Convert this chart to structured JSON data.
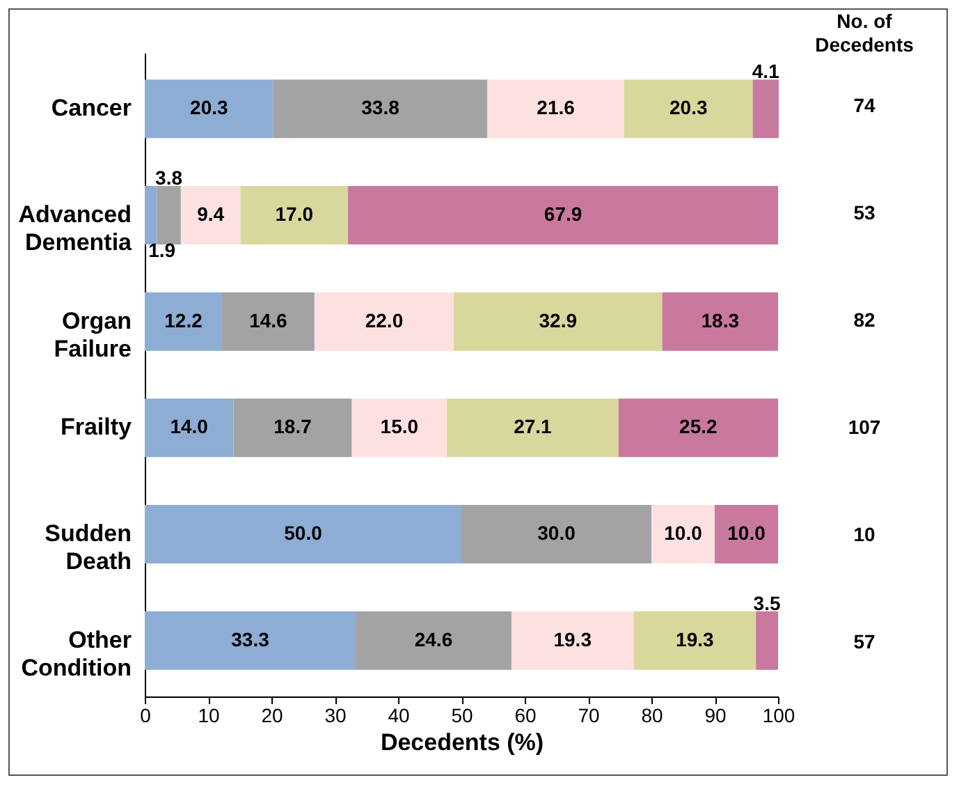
{
  "chart_data": {
    "type": "bar",
    "orientation": "horizontal",
    "stacked": true,
    "xlabel": "Decedents (%)",
    "categories": [
      "Cancer",
      "Advanced Dementia",
      "Organ Failure",
      "Frailty",
      "Sudden Death",
      "Other Condition"
    ],
    "series": [
      {
        "color": "#8eadd4",
        "values": [
          20.3,
          1.9,
          12.2,
          14.0,
          50.0,
          33.3
        ],
        "value_labels": [
          "20.3",
          "1.9",
          "12.2",
          "14.0",
          "50.0",
          "33.3"
        ]
      },
      {
        "color": "#a3a3a3",
        "values": [
          33.8,
          3.8,
          14.6,
          18.7,
          30.0,
          24.6
        ],
        "value_labels": [
          "33.8",
          "3.8",
          "14.6",
          "18.7",
          "30.0",
          "24.6"
        ]
      },
      {
        "color": "#fde1e1",
        "values": [
          21.6,
          9.4,
          22.0,
          15.0,
          10.0,
          19.3
        ],
        "value_labels": [
          "21.6",
          "9.4",
          "22.0",
          "15.0",
          "10.0",
          "19.3"
        ]
      },
      {
        "color": "#d9d89c",
        "values": [
          20.3,
          17.0,
          32.9,
          27.1,
          null,
          19.3
        ],
        "value_labels": [
          "20.3",
          "17.0",
          "32.9",
          "27.1",
          null,
          "19.3"
        ]
      },
      {
        "color": "#c9799e",
        "values": [
          4.1,
          67.9,
          18.3,
          25.2,
          10.0,
          3.5
        ],
        "value_labels": [
          "4.1",
          "67.9",
          "18.3",
          "25.2",
          "10.0",
          "3.5"
        ]
      }
    ],
    "xlim": [
      0,
      100
    ],
    "xticks": [
      0,
      10,
      20,
      30,
      40,
      50,
      60,
      70,
      80,
      90,
      100
    ],
    "grid": false,
    "annotations": [
      "No. of Decedents",
      "74",
      "53",
      "82",
      "107",
      "10",
      "57"
    ]
  }
}
